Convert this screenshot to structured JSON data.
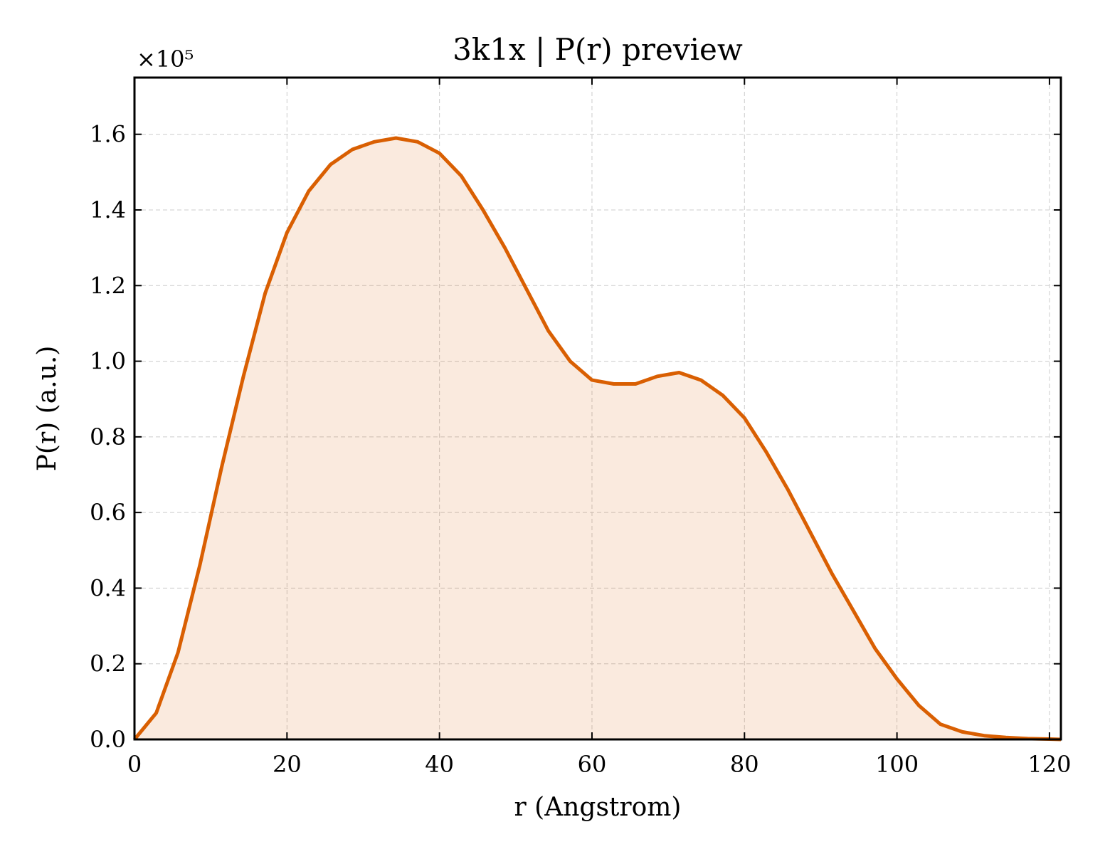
{
  "chart_data": {
    "type": "area",
    "title": "3k1x | P(r) preview",
    "xlabel": "r (Angstrom)",
    "ylabel": "P(r) (a.u.)",
    "y_offset_label": "×10⁵",
    "xlim": [
      0,
      121.5
    ],
    "ylim": [
      0,
      1.75
    ],
    "y_multiplier": 100000,
    "grid": true,
    "x_ticks": [
      0,
      20,
      40,
      60,
      80,
      100,
      120
    ],
    "x_tick_labels": [
      "0",
      "20",
      "40",
      "60",
      "80",
      "100",
      "120"
    ],
    "y_ticks": [
      0.0,
      0.2,
      0.4,
      0.6,
      0.8,
      1.0,
      1.2,
      1.4,
      1.6
    ],
    "y_tick_labels": [
      "0.0",
      "0.2",
      "0.4",
      "0.6",
      "0.8",
      "1.0",
      "1.2",
      "1.4",
      "1.6"
    ],
    "colors": {
      "line": "#d95f02",
      "fill": "#d95f02"
    },
    "series": [
      {
        "x": [
          0,
          2.86,
          5.71,
          8.57,
          11.43,
          14.29,
          17.14,
          20.0,
          22.86,
          25.71,
          28.57,
          31.43,
          34.29,
          37.14,
          40.0,
          42.86,
          45.71,
          48.57,
          51.43,
          54.29,
          57.14,
          60.0,
          62.86,
          65.71,
          68.57,
          71.43,
          74.29,
          77.14,
          80.0,
          82.86,
          85.71,
          88.57,
          91.43,
          94.29,
          97.14,
          100.0,
          102.86,
          105.71,
          108.57,
          111.43,
          114.29,
          117.14,
          120.0,
          121.5
        ],
        "y": [
          0.0,
          0.07,
          0.23,
          0.46,
          0.72,
          0.96,
          1.18,
          1.34,
          1.45,
          1.52,
          1.56,
          1.58,
          1.59,
          1.58,
          1.55,
          1.49,
          1.4,
          1.3,
          1.19,
          1.08,
          1.0,
          0.95,
          0.94,
          0.94,
          0.96,
          0.97,
          0.95,
          0.91,
          0.85,
          0.76,
          0.66,
          0.55,
          0.44,
          0.34,
          0.24,
          0.16,
          0.09,
          0.04,
          0.02,
          0.01,
          0.005,
          0.002,
          0.001,
          0.0
        ]
      }
    ]
  }
}
